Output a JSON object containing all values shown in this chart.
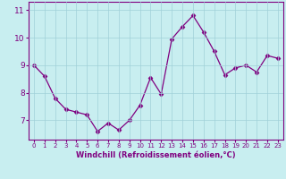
{
  "x": [
    0,
    1,
    2,
    3,
    4,
    5,
    6,
    7,
    8,
    9,
    10,
    11,
    12,
    13,
    14,
    15,
    16,
    17,
    18,
    19,
    20,
    21,
    22,
    23
  ],
  "y": [
    9.0,
    8.6,
    7.8,
    7.4,
    7.3,
    7.2,
    6.6,
    6.9,
    6.65,
    7.0,
    7.55,
    8.55,
    7.95,
    9.95,
    10.4,
    10.8,
    10.2,
    9.5,
    8.65,
    8.9,
    9.0,
    8.75,
    9.35,
    9.25
  ],
  "line_color": "#800080",
  "marker": "D",
  "marker_size": 2.5,
  "bg_color": "#c8eef0",
  "grid_color": "#a0d0d8",
  "xlabel": "Windchill (Refroidissement éolien,°C)",
  "xlabel_color": "#800080",
  "tick_color": "#800080",
  "ylim": [
    6.3,
    11.3
  ],
  "xlim": [
    -0.5,
    23.5
  ],
  "yticks": [
    7,
    8,
    9,
    10,
    11
  ],
  "xticks": [
    0,
    1,
    2,
    3,
    4,
    5,
    6,
    7,
    8,
    9,
    10,
    11,
    12,
    13,
    14,
    15,
    16,
    17,
    18,
    19,
    20,
    21,
    22,
    23
  ],
  "spine_color": "#800080",
  "xlabel_fontsize": 6.0,
  "xtick_fontsize": 5.0,
  "ytick_fontsize": 6.5
}
